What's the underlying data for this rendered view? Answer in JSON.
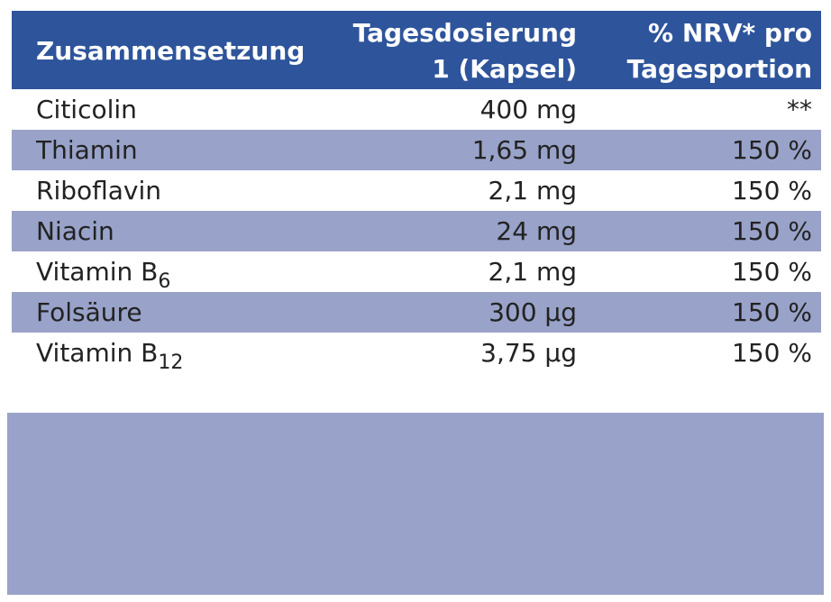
{
  "header": {
    "col1": "Zusammensetzung",
    "col2_line1": "Tagesdosierung",
    "col2_line2": "1 (Kapsel)",
    "col3_line1": "% NRV* pro",
    "col3_line2": "Tagesportion"
  },
  "rows": [
    {
      "name": "Citicolin",
      "sub": "",
      "dose": "400 mg",
      "nrv": "**"
    },
    {
      "name": "Thiamin",
      "sub": "",
      "dose": "1,65 mg",
      "nrv": "150 %"
    },
    {
      "name": "Riboflavin",
      "sub": "",
      "dose": "2,1 mg",
      "nrv": "150 %"
    },
    {
      "name": "Niacin",
      "sub": "",
      "dose": "24 mg",
      "nrv": "150 %"
    },
    {
      "name": "Vitamin B",
      "sub": "6",
      "dose": "2,1 mg",
      "nrv": "150 %"
    },
    {
      "name": "Folsäure",
      "sub": "",
      "dose": "300 µg",
      "nrv": "150 %"
    },
    {
      "name": "Vitamin B",
      "sub": "12",
      "dose": "3,75 µg",
      "nrv": "150 %"
    }
  ],
  "colors": {
    "header_bg": "#2e549b",
    "shaded_row_bg": "#99a2c8",
    "footer_box_bg": "#99a2c8"
  }
}
